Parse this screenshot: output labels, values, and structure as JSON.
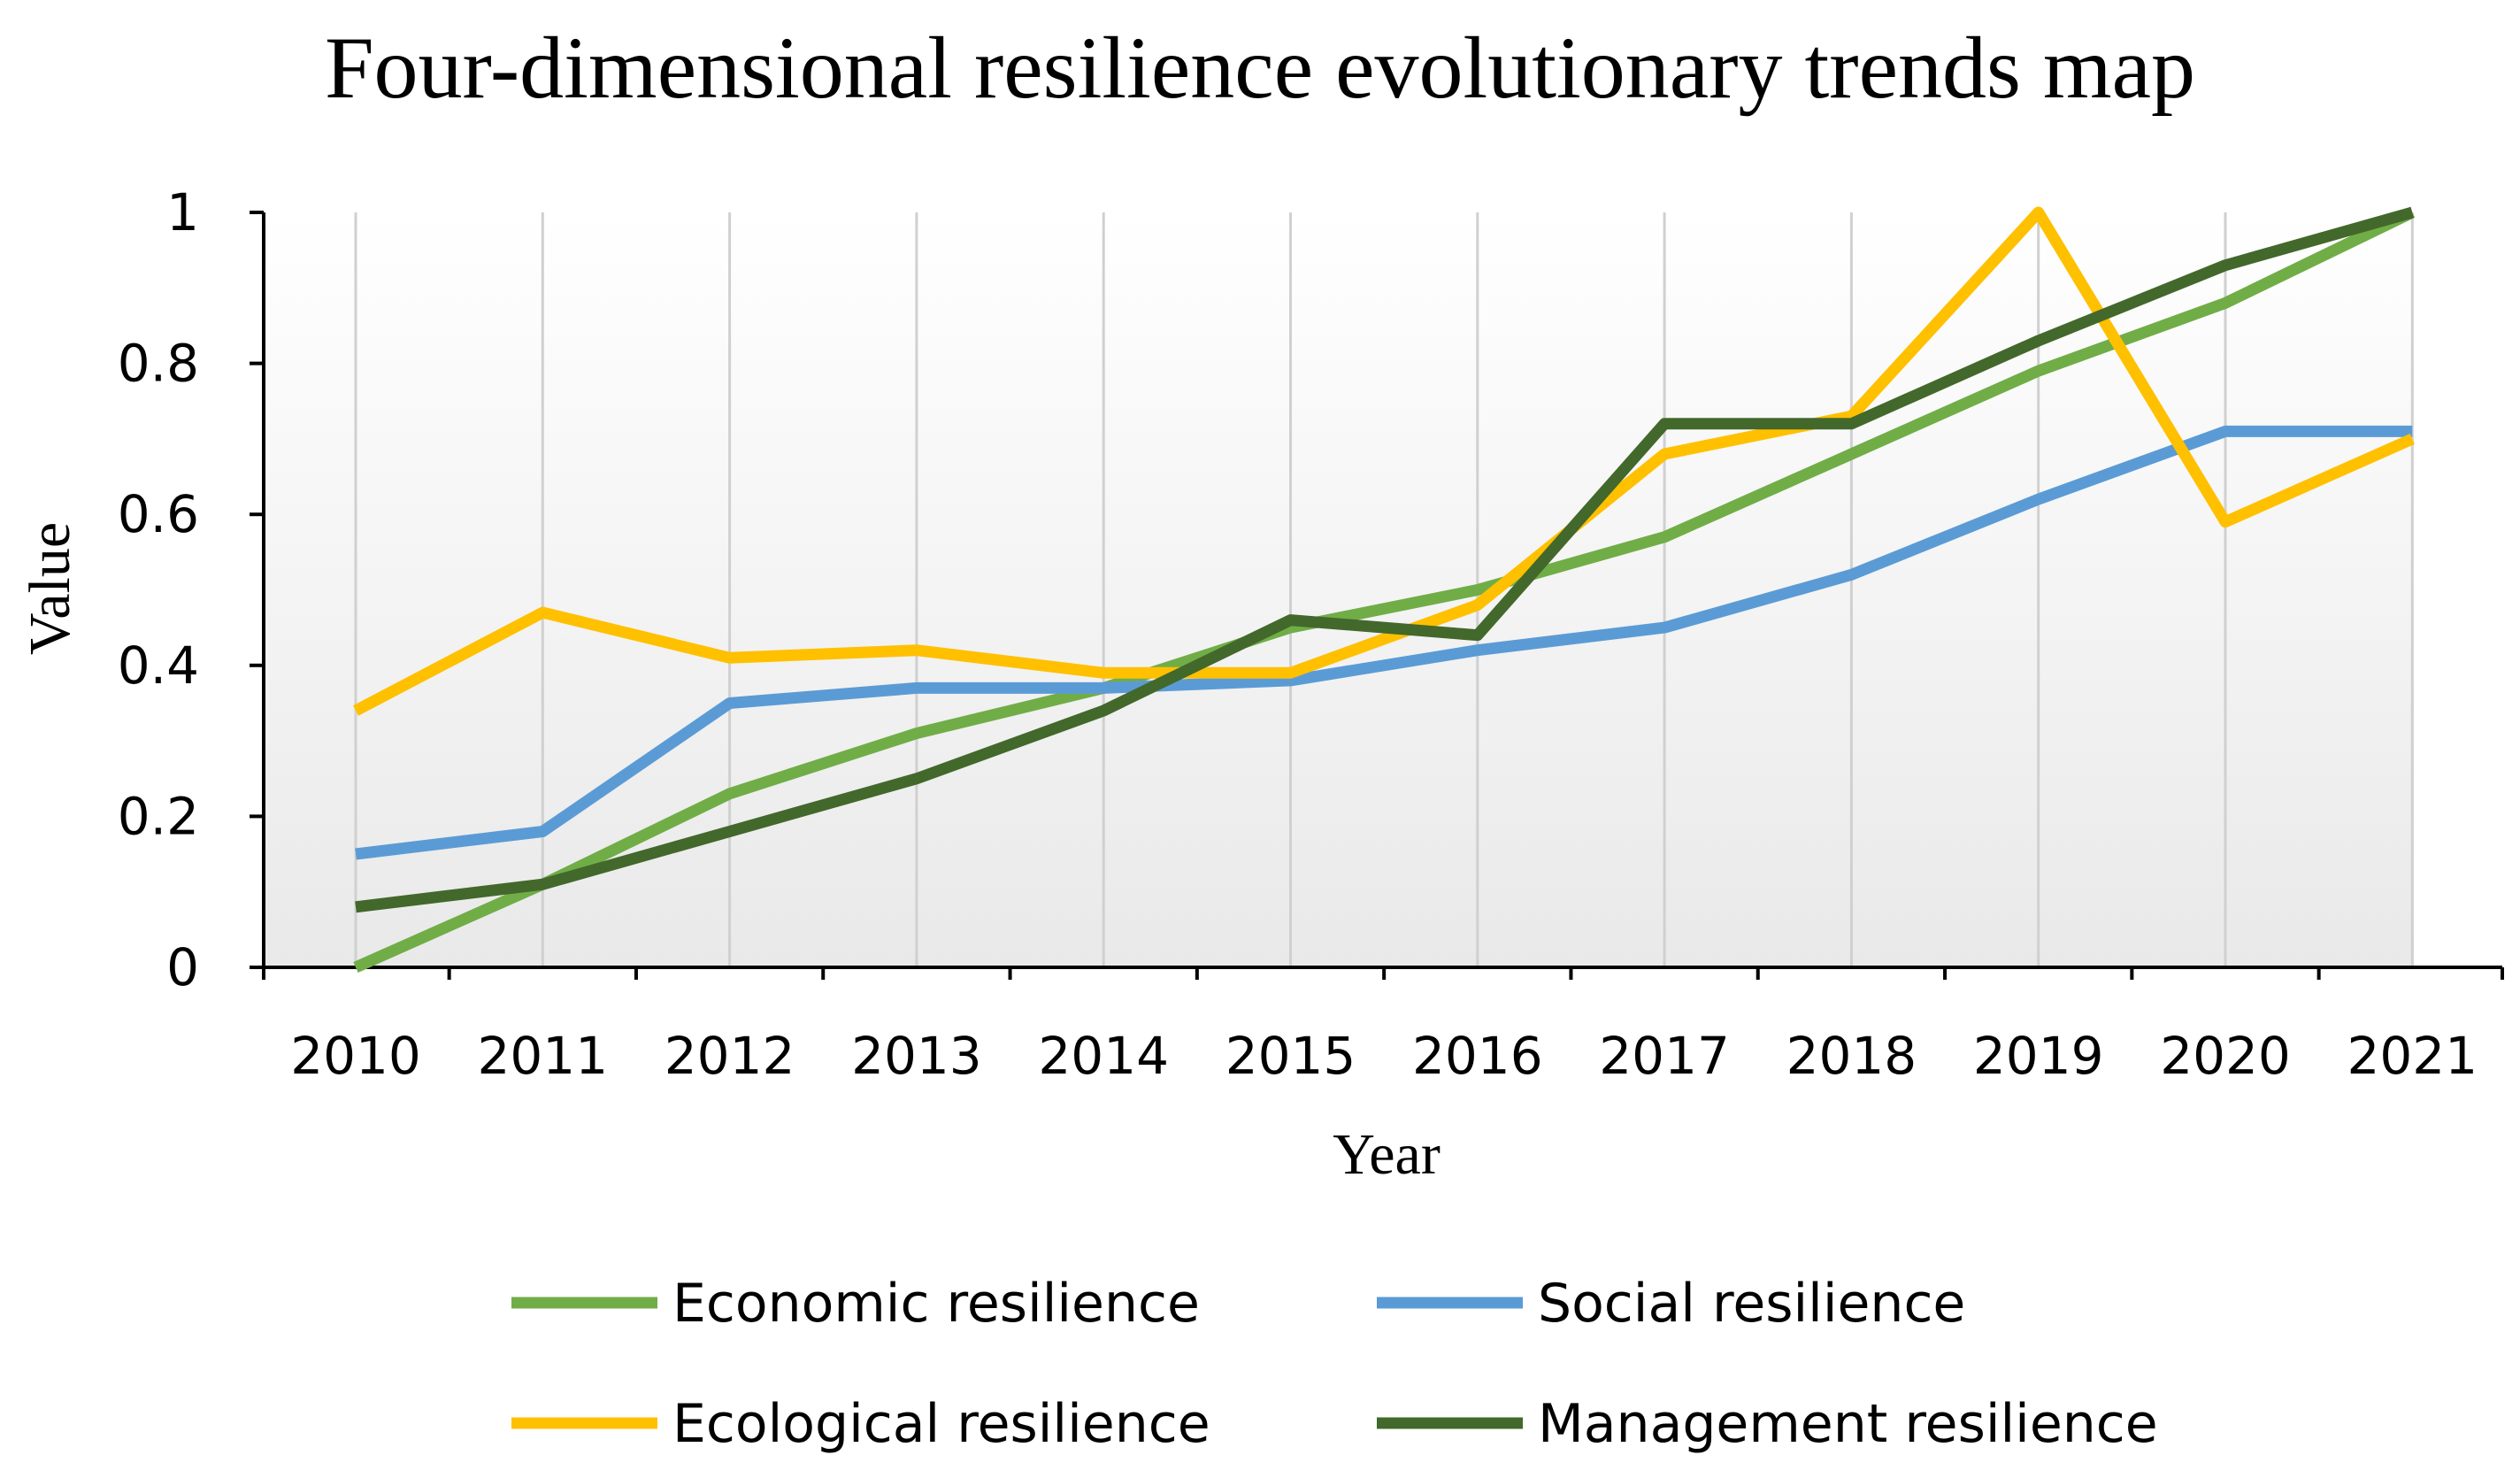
{
  "chart_data": {
    "type": "line",
    "title": "Four-dimensional resilience evolutionary trends map",
    "xlabel": "Year",
    "ylabel": "Value",
    "categories": [
      "2010",
      "2011",
      "2012",
      "2013",
      "2014",
      "2015",
      "2016",
      "2017",
      "2018",
      "2019",
      "2020",
      "2021"
    ],
    "ylim": [
      0,
      1
    ],
    "yticks": [
      "0",
      "0.2",
      "0.4",
      "0.6",
      "0.8",
      "1"
    ],
    "grid": "vertical",
    "legend_position": "bottom",
    "series": [
      {
        "name": "Economic resilience",
        "color": "#70ad47",
        "values": [
          0.0,
          0.11,
          0.23,
          0.31,
          0.37,
          0.45,
          0.5,
          0.57,
          0.68,
          0.79,
          0.88,
          1.0
        ]
      },
      {
        "name": "Social resilience",
        "color": "#5b9bd5",
        "values": [
          0.15,
          0.18,
          0.35,
          0.37,
          0.37,
          0.38,
          0.42,
          0.45,
          0.52,
          0.62,
          0.71,
          0.71
        ]
      },
      {
        "name": "Ecological resilience",
        "color": "#ffc000",
        "values": [
          0.34,
          0.47,
          0.41,
          0.42,
          0.39,
          0.39,
          0.48,
          0.68,
          0.73,
          1.0,
          0.59,
          0.7
        ]
      },
      {
        "name": "Management resilience",
        "color": "#43682b",
        "values": [
          0.08,
          0.11,
          0.18,
          0.25,
          0.34,
          0.46,
          0.44,
          0.72,
          0.72,
          0.83,
          0.93,
          1.0
        ]
      }
    ]
  }
}
